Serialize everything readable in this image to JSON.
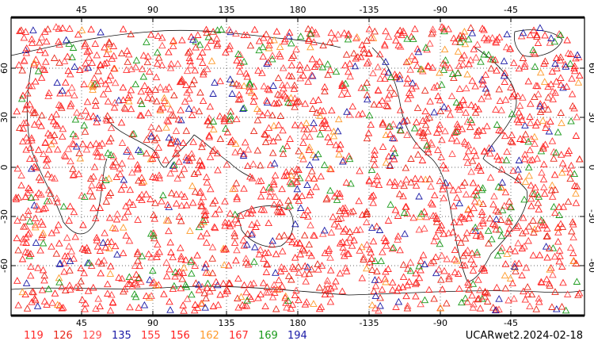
{
  "map": {
    "top_lon_labels": [
      "45",
      "90",
      "135",
      "180",
      "-135",
      "-90",
      "-45"
    ],
    "bottom_lon_labels": [
      "45",
      "90",
      "135",
      "180",
      "-135",
      "-90",
      "-45"
    ],
    "lat_labels": [
      "60",
      "30",
      "0",
      "-30",
      "-60"
    ],
    "marker_shape": "triangle-outline"
  },
  "legend": [
    {
      "label": "119",
      "color": "#ff2a2a"
    },
    {
      "label": "126",
      "color": "#e8281a"
    },
    {
      "label": "129",
      "color": "#ff4b4b"
    },
    {
      "label": "135",
      "color": "#1a1aa6"
    },
    {
      "label": "155",
      "color": "#ff3333"
    },
    {
      "label": "156",
      "color": "#ff1a1a"
    },
    {
      "label": "162",
      "color": "#ff9a2a"
    },
    {
      "label": "167",
      "color": "#ff2a2a"
    },
    {
      "label": "169",
      "color": "#1a9a1a"
    },
    {
      "label": "194",
      "color": "#1a1aa6"
    }
  ],
  "caption": "UCARwet2.2024-02-18"
}
